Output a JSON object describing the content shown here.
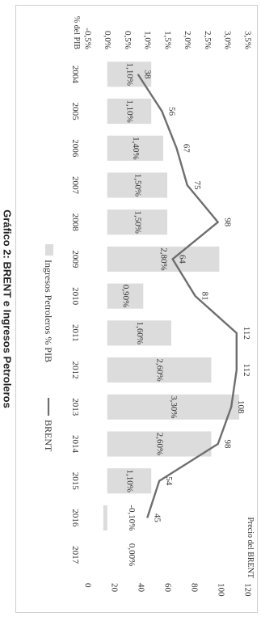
{
  "chart_data": {
    "type": "bar+line",
    "title": "Gráfico 2: BRENT e Ingresos Petroleros",
    "categories": [
      "2004",
      "2005",
      "2006",
      "2007",
      "2008",
      "2009",
      "2010",
      "2011",
      "2012",
      "2013",
      "2014",
      "2015",
      "2016",
      "2017"
    ],
    "series": [
      {
        "name": "Ingresos Petroleros % PIB",
        "type": "bar",
        "axis": "left",
        "color": "#dcdcdc",
        "values": [
          1.1,
          1.1,
          1.4,
          1.5,
          1.5,
          2.8,
          0.9,
          1.6,
          2.6,
          3.3,
          2.6,
          1.1,
          -0.1,
          0.0
        ],
        "labels": [
          "1,10%",
          "1,10%",
          "1,40%",
          "1,50%",
          "1,50%",
          "2,80%",
          "0,90%",
          "1,60%",
          "2,60%",
          "3,30%",
          "2,60%",
          "1,10%",
          "-0,10%",
          "0,00%"
        ]
      },
      {
        "name": "BRENT",
        "type": "line",
        "axis": "right",
        "color": "#6e6e6e",
        "values": [
          38,
          56,
          67,
          75,
          98,
          64,
          81,
          112,
          112,
          108,
          98,
          54,
          45,
          null
        ],
        "labels": [
          "38",
          "56",
          "67",
          "75",
          "98",
          "64",
          "81",
          "112",
          "112",
          "108",
          "98",
          "54",
          "45",
          ""
        ]
      }
    ],
    "left_axis": {
      "label": "% del PIB",
      "range": [
        -0.5,
        3.5
      ],
      "ticks": [
        -0.5,
        0,
        0.5,
        1.0,
        1.5,
        2.0,
        2.5,
        3.0,
        3.5
      ],
      "tick_labels": [
        "-0,5%",
        "0,0%",
        "0,5%",
        "1,0%",
        "1,5%",
        "2,0%",
        "2,5%",
        "3,0%",
        "3,5%"
      ]
    },
    "right_axis": {
      "label": "Precio del BRENT",
      "range": [
        0,
        120
      ],
      "ticks": [
        0,
        20,
        40,
        60,
        80,
        100,
        120
      ],
      "tick_labels": [
        "0",
        "20",
        "40",
        "60",
        "80",
        "100",
        "120"
      ]
    },
    "legend_position": "bottom",
    "grid": false
  }
}
